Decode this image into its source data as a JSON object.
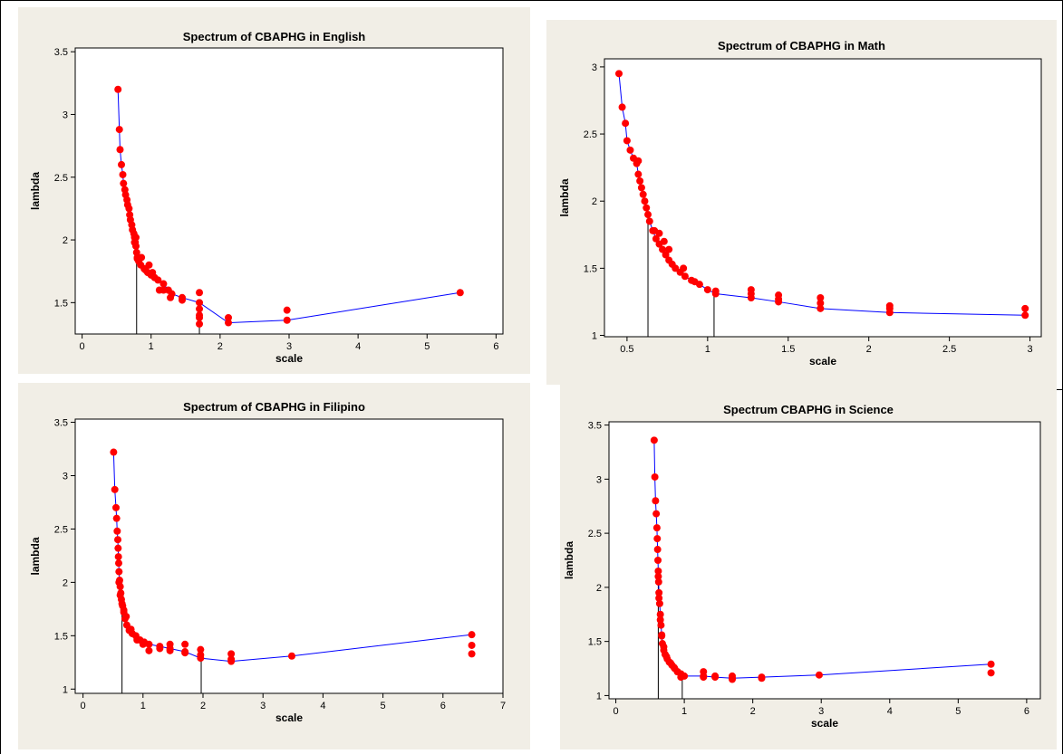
{
  "colors": {
    "panel_background": "#f1eee6",
    "plot_background": "#ffffff",
    "marker": "#ff0000",
    "connector_line": "#0000ff",
    "axis": "#000000"
  },
  "chart_data": [
    {
      "type": "scatter",
      "title": "Spectrum of CBAPHG in English",
      "xlabel": "scale",
      "ylabel": "lambda",
      "xlim": [
        -0.1,
        6.1
      ],
      "ylim": [
        1.25,
        3.53
      ],
      "xticks": [
        0,
        1,
        2,
        3,
        4,
        5,
        6
      ],
      "yticks": [
        1.5,
        2.0,
        2.5,
        3.0,
        3.5
      ],
      "x": [
        0.52,
        0.54,
        0.55,
        0.57,
        0.59,
        0.6,
        0.62,
        0.63,
        0.65,
        0.66,
        0.68,
        0.69,
        0.7,
        0.72,
        0.73,
        0.75,
        0.76,
        0.77,
        0.78,
        0.79,
        0.8,
        0.82,
        0.85,
        0.9,
        0.95,
        1.0,
        1.05,
        1.1,
        1.18,
        1.25,
        1.3,
        1.45,
        1.7,
        2.12,
        2.97,
        5.48
      ],
      "y": [
        3.2,
        2.88,
        2.72,
        2.6,
        2.52,
        2.45,
        2.4,
        2.36,
        2.32,
        2.28,
        2.25,
        2.2,
        2.16,
        2.12,
        2.08,
        2.05,
        2.02,
        1.98,
        1.95,
        1.9,
        1.86,
        1.83,
        1.8,
        1.77,
        1.74,
        1.72,
        1.7,
        1.68,
        1.65,
        1.6,
        1.57,
        1.54,
        1.5,
        1.34,
        1.36,
        1.58
      ],
      "extra_points": {
        "x": [
          0.76,
          0.78,
          0.8,
          0.86,
          0.92,
          0.97,
          1.02,
          1.12,
          1.18,
          1.28,
          1.45,
          1.7,
          1.7,
          1.7,
          1.7,
          1.7,
          2.12,
          2.97
        ],
        "y": [
          1.98,
          2.02,
          1.85,
          1.86,
          1.76,
          1.8,
          1.74,
          1.6,
          1.6,
          1.54,
          1.52,
          1.58,
          1.45,
          1.4,
          1.38,
          1.33,
          1.38,
          1.44
        ]
      },
      "vlines": [
        0.79,
        1.7
      ]
    },
    {
      "type": "scatter",
      "title": "Spectrum of  CBAPHG in Math",
      "xlabel": "scale",
      "ylabel": "lambda",
      "xlim": [
        0.36,
        3.07
      ],
      "ylim": [
        0.99,
        3.06
      ],
      "xticks": [
        0.5,
        1.0,
        1.5,
        2.0,
        2.5,
        3.0
      ],
      "yticks": [
        1.0,
        1.5,
        2.0,
        2.5,
        3.0
      ],
      "x": [
        0.45,
        0.47,
        0.49,
        0.5,
        0.52,
        0.54,
        0.56,
        0.57,
        0.58,
        0.59,
        0.6,
        0.61,
        0.62,
        0.63,
        0.64,
        0.66,
        0.68,
        0.7,
        0.72,
        0.74,
        0.76,
        0.78,
        0.8,
        0.83,
        0.86,
        0.9,
        0.95,
        1.0,
        1.05,
        1.27,
        1.44,
        1.7,
        2.13,
        2.97
      ],
      "y": [
        2.95,
        2.7,
        2.58,
        2.45,
        2.38,
        2.32,
        2.28,
        2.2,
        2.15,
        2.1,
        2.05,
        2.0,
        1.95,
        1.9,
        1.85,
        1.78,
        1.72,
        1.68,
        1.64,
        1.6,
        1.56,
        1.53,
        1.5,
        1.47,
        1.44,
        1.41,
        1.38,
        1.34,
        1.31,
        1.28,
        1.25,
        1.2,
        1.17,
        1.15
      ],
      "extra_points": {
        "x": [
          0.57,
          0.67,
          0.7,
          0.73,
          0.76,
          0.85,
          0.92,
          1.05,
          1.27,
          1.27,
          1.44,
          1.44,
          1.7,
          1.7,
          2.13,
          2.13,
          2.97
        ],
        "y": [
          2.3,
          1.78,
          1.76,
          1.7,
          1.64,
          1.5,
          1.4,
          1.33,
          1.34,
          1.31,
          1.3,
          1.27,
          1.28,
          1.24,
          1.22,
          1.2,
          1.2
        ]
      },
      "vlines": [
        0.63,
        1.04
      ]
    },
    {
      "type": "scatter",
      "title": "Spectrum of CBAPHG in Filipino",
      "xlabel": "scale",
      "ylabel": "lambda",
      "xlim": [
        -0.13,
        7.0
      ],
      "ylim": [
        0.96,
        3.53
      ],
      "xticks": [
        0,
        1,
        2,
        3,
        4,
        5,
        6,
        7
      ],
      "yticks": [
        1.0,
        1.5,
        2.0,
        2.5,
        3.0,
        3.5
      ],
      "x": [
        0.51,
        0.53,
        0.55,
        0.56,
        0.57,
        0.58,
        0.585,
        0.59,
        0.595,
        0.6,
        0.61,
        0.62,
        0.63,
        0.64,
        0.66,
        0.68,
        0.7,
        0.73,
        0.77,
        0.82,
        0.88,
        0.95,
        1.02,
        1.1,
        1.28,
        1.45,
        1.7,
        1.96,
        2.47,
        3.48,
        6.48
      ],
      "y": [
        3.22,
        2.87,
        2.7,
        2.6,
        2.48,
        2.4,
        2.32,
        2.24,
        2.18,
        2.1,
        2.02,
        1.96,
        1.9,
        1.84,
        1.78,
        1.72,
        1.66,
        1.6,
        1.55,
        1.52,
        1.5,
        1.46,
        1.44,
        1.42,
        1.4,
        1.38,
        1.35,
        1.29,
        1.26,
        1.31,
        1.51
      ],
      "extra_points": {
        "x": [
          0.6,
          0.62,
          0.65,
          0.68,
          0.72,
          0.8,
          0.9,
          1.0,
          1.1,
          1.28,
          1.45,
          1.45,
          1.7,
          1.7,
          1.96,
          1.96,
          2.47,
          2.47,
          6.48,
          6.48
        ],
        "y": [
          2.0,
          1.88,
          1.8,
          1.74,
          1.68,
          1.56,
          1.46,
          1.42,
          1.36,
          1.38,
          1.42,
          1.36,
          1.42,
          1.34,
          1.37,
          1.32,
          1.33,
          1.28,
          1.41,
          1.33
        ]
      },
      "vlines": [
        0.65,
        1.97
      ]
    },
    {
      "type": "scatter",
      "title": "Spectrum CBAPHG in Science",
      "xlabel": "scale",
      "ylabel": "lambda",
      "xlim": [
        -0.1,
        6.2
      ],
      "ylim": [
        0.97,
        3.53
      ],
      "xticks": [
        0,
        1,
        2,
        3,
        4,
        5,
        6
      ],
      "yticks": [
        1.0,
        1.5,
        2.0,
        2.5,
        3.0,
        3.5
      ],
      "x": [
        0.56,
        0.57,
        0.58,
        0.59,
        0.6,
        0.605,
        0.61,
        0.615,
        0.62,
        0.625,
        0.63,
        0.64,
        0.65,
        0.66,
        0.67,
        0.68,
        0.7,
        0.72,
        0.75,
        0.78,
        0.82,
        0.86,
        0.9,
        0.95,
        1.0,
        1.28,
        1.45,
        1.7,
        2.13,
        2.97,
        5.48
      ],
      "y": [
        3.36,
        3.02,
        2.8,
        2.68,
        2.55,
        2.45,
        2.35,
        2.25,
        2.15,
        2.05,
        1.95,
        1.85,
        1.75,
        1.65,
        1.56,
        1.48,
        1.42,
        1.38,
        1.34,
        1.31,
        1.28,
        1.25,
        1.22,
        1.2,
        1.18,
        1.18,
        1.17,
        1.16,
        1.17,
        1.19,
        1.29
      ],
      "extra_points": {
        "x": [
          0.62,
          0.63,
          0.65,
          0.67,
          0.7,
          0.74,
          0.8,
          0.85,
          0.9,
          0.95,
          1.28,
          1.28,
          1.45,
          1.7,
          1.7,
          2.13,
          5.48
        ],
        "y": [
          2.1,
          1.9,
          1.7,
          1.55,
          1.45,
          1.36,
          1.3,
          1.26,
          1.22,
          1.17,
          1.22,
          1.17,
          1.18,
          1.18,
          1.15,
          1.16,
          1.21
        ]
      },
      "vlines": [
        0.62,
        0.97
      ]
    }
  ]
}
